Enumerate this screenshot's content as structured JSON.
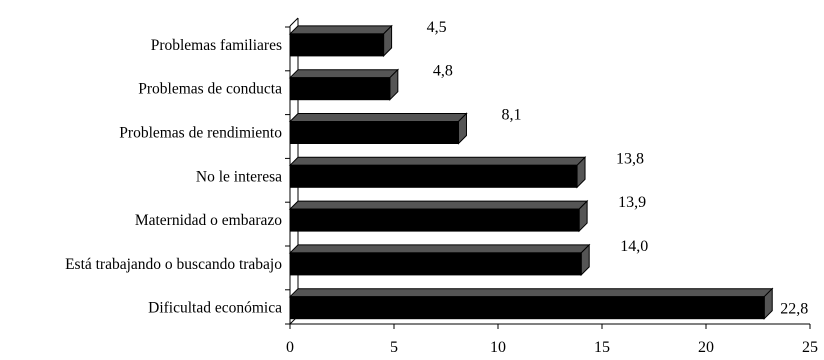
{
  "chart_data": {
    "type": "bar",
    "orientation": "horizontal",
    "categories": [
      "Problemas familiares",
      "Problemas de conducta",
      "Problemas de rendimiento",
      "No le interesa",
      "Maternidad o embarazo",
      "Está trabajando o buscando trabajo",
      "Dificultad económica"
    ],
    "values": [
      4.5,
      4.8,
      8.1,
      13.8,
      13.9,
      14.0,
      22.8
    ],
    "value_labels": [
      "4,5",
      "4,8",
      "8,1",
      "13,8",
      "13,9",
      "14,0",
      "22,8"
    ],
    "x_ticks": [
      "0",
      "5",
      "10",
      "15",
      "20",
      "25"
    ],
    "xlim": [
      0,
      25
    ],
    "grid": false,
    "legend": "none",
    "title": "",
    "xlabel": "",
    "ylabel": "",
    "bar_color": "#000000",
    "bar_side_color": "#555555"
  }
}
